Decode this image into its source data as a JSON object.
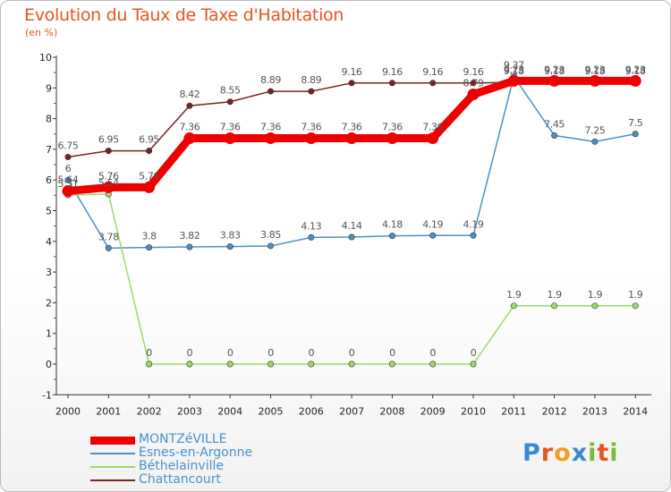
{
  "title": "Evolution du Taux de Taxe d'Habitation",
  "subtitle": "(en %)",
  "logo_text": "Proxiti",
  "chart_data": {
    "type": "line",
    "title": "Evolution du Taux de Taxe d'Habitation",
    "ylabel": "(en %)",
    "xlabel": "",
    "ylim": [
      -1,
      10
    ],
    "yticks": [
      -1,
      0,
      1,
      2,
      3,
      4,
      5,
      6,
      7,
      8,
      9,
      10
    ],
    "grid": false,
    "legend_position": "bottom-left",
    "categories": [
      "2000",
      "2001",
      "2002",
      "2003",
      "2004",
      "2005",
      "2006",
      "2007",
      "2008",
      "2009",
      "2010",
      "2011",
      "2012",
      "2013",
      "2014"
    ],
    "series": [
      {
        "name": "MONTZéVILLE",
        "color": "#ee0000",
        "values": [
          5.64,
          5.76,
          5.76,
          7.36,
          7.36,
          7.36,
          7.36,
          7.36,
          7.36,
          7.36,
          8.79,
          9.23,
          9.23,
          9.23,
          9.23
        ],
        "labels": [
          "5.64",
          "5.76",
          "5.76",
          "7.36",
          "7.36",
          "7.36",
          "7.36",
          "7.36",
          "7.36",
          "7.36",
          "8.79",
          "9.23",
          "9.23",
          "9.23",
          "9.23"
        ]
      },
      {
        "name": "Esnes-en-Argonne",
        "color": "#4a90c8",
        "values": [
          6,
          3.78,
          3.8,
          3.82,
          3.83,
          3.85,
          4.13,
          4.14,
          4.18,
          4.19,
          4.19,
          9.37,
          7.45,
          7.25,
          7.5
        ],
        "labels": [
          "6",
          "3.78",
          "3.8",
          "3.82",
          "3.83",
          "3.85",
          "4.13",
          "4.14",
          "4.18",
          "4.19",
          "4.19",
          "9.37",
          "7.45",
          "7.25",
          "7.5"
        ]
      },
      {
        "name": "Béthelainville",
        "color": "#99dd66",
        "values": [
          5.51,
          5.54,
          0,
          0,
          0,
          0,
          0,
          0,
          0,
          0,
          0,
          1.9,
          1.9,
          1.9,
          1.9
        ],
        "labels": [
          "5.51",
          "5.54",
          "0",
          "0",
          "0",
          "0",
          "0",
          "0",
          "0",
          "0",
          "0",
          "1.9",
          "1.9",
          "1.9",
          "1.9"
        ]
      },
      {
        "name": "Chattancourt",
        "color": "#772222",
        "values": [
          6.75,
          6.95,
          6.95,
          8.42,
          8.55,
          8.89,
          8.89,
          9.16,
          9.16,
          9.16,
          9.16,
          9.18,
          9.18,
          9.18,
          9.18
        ],
        "labels": [
          "6.75",
          "6.95",
          "6.95",
          "8.42",
          "8.55",
          "8.89",
          "8.89",
          "9.16",
          "9.16",
          "9.16",
          "9.16",
          "9.18",
          "9.18",
          "9.18",
          "9.18"
        ]
      }
    ]
  }
}
